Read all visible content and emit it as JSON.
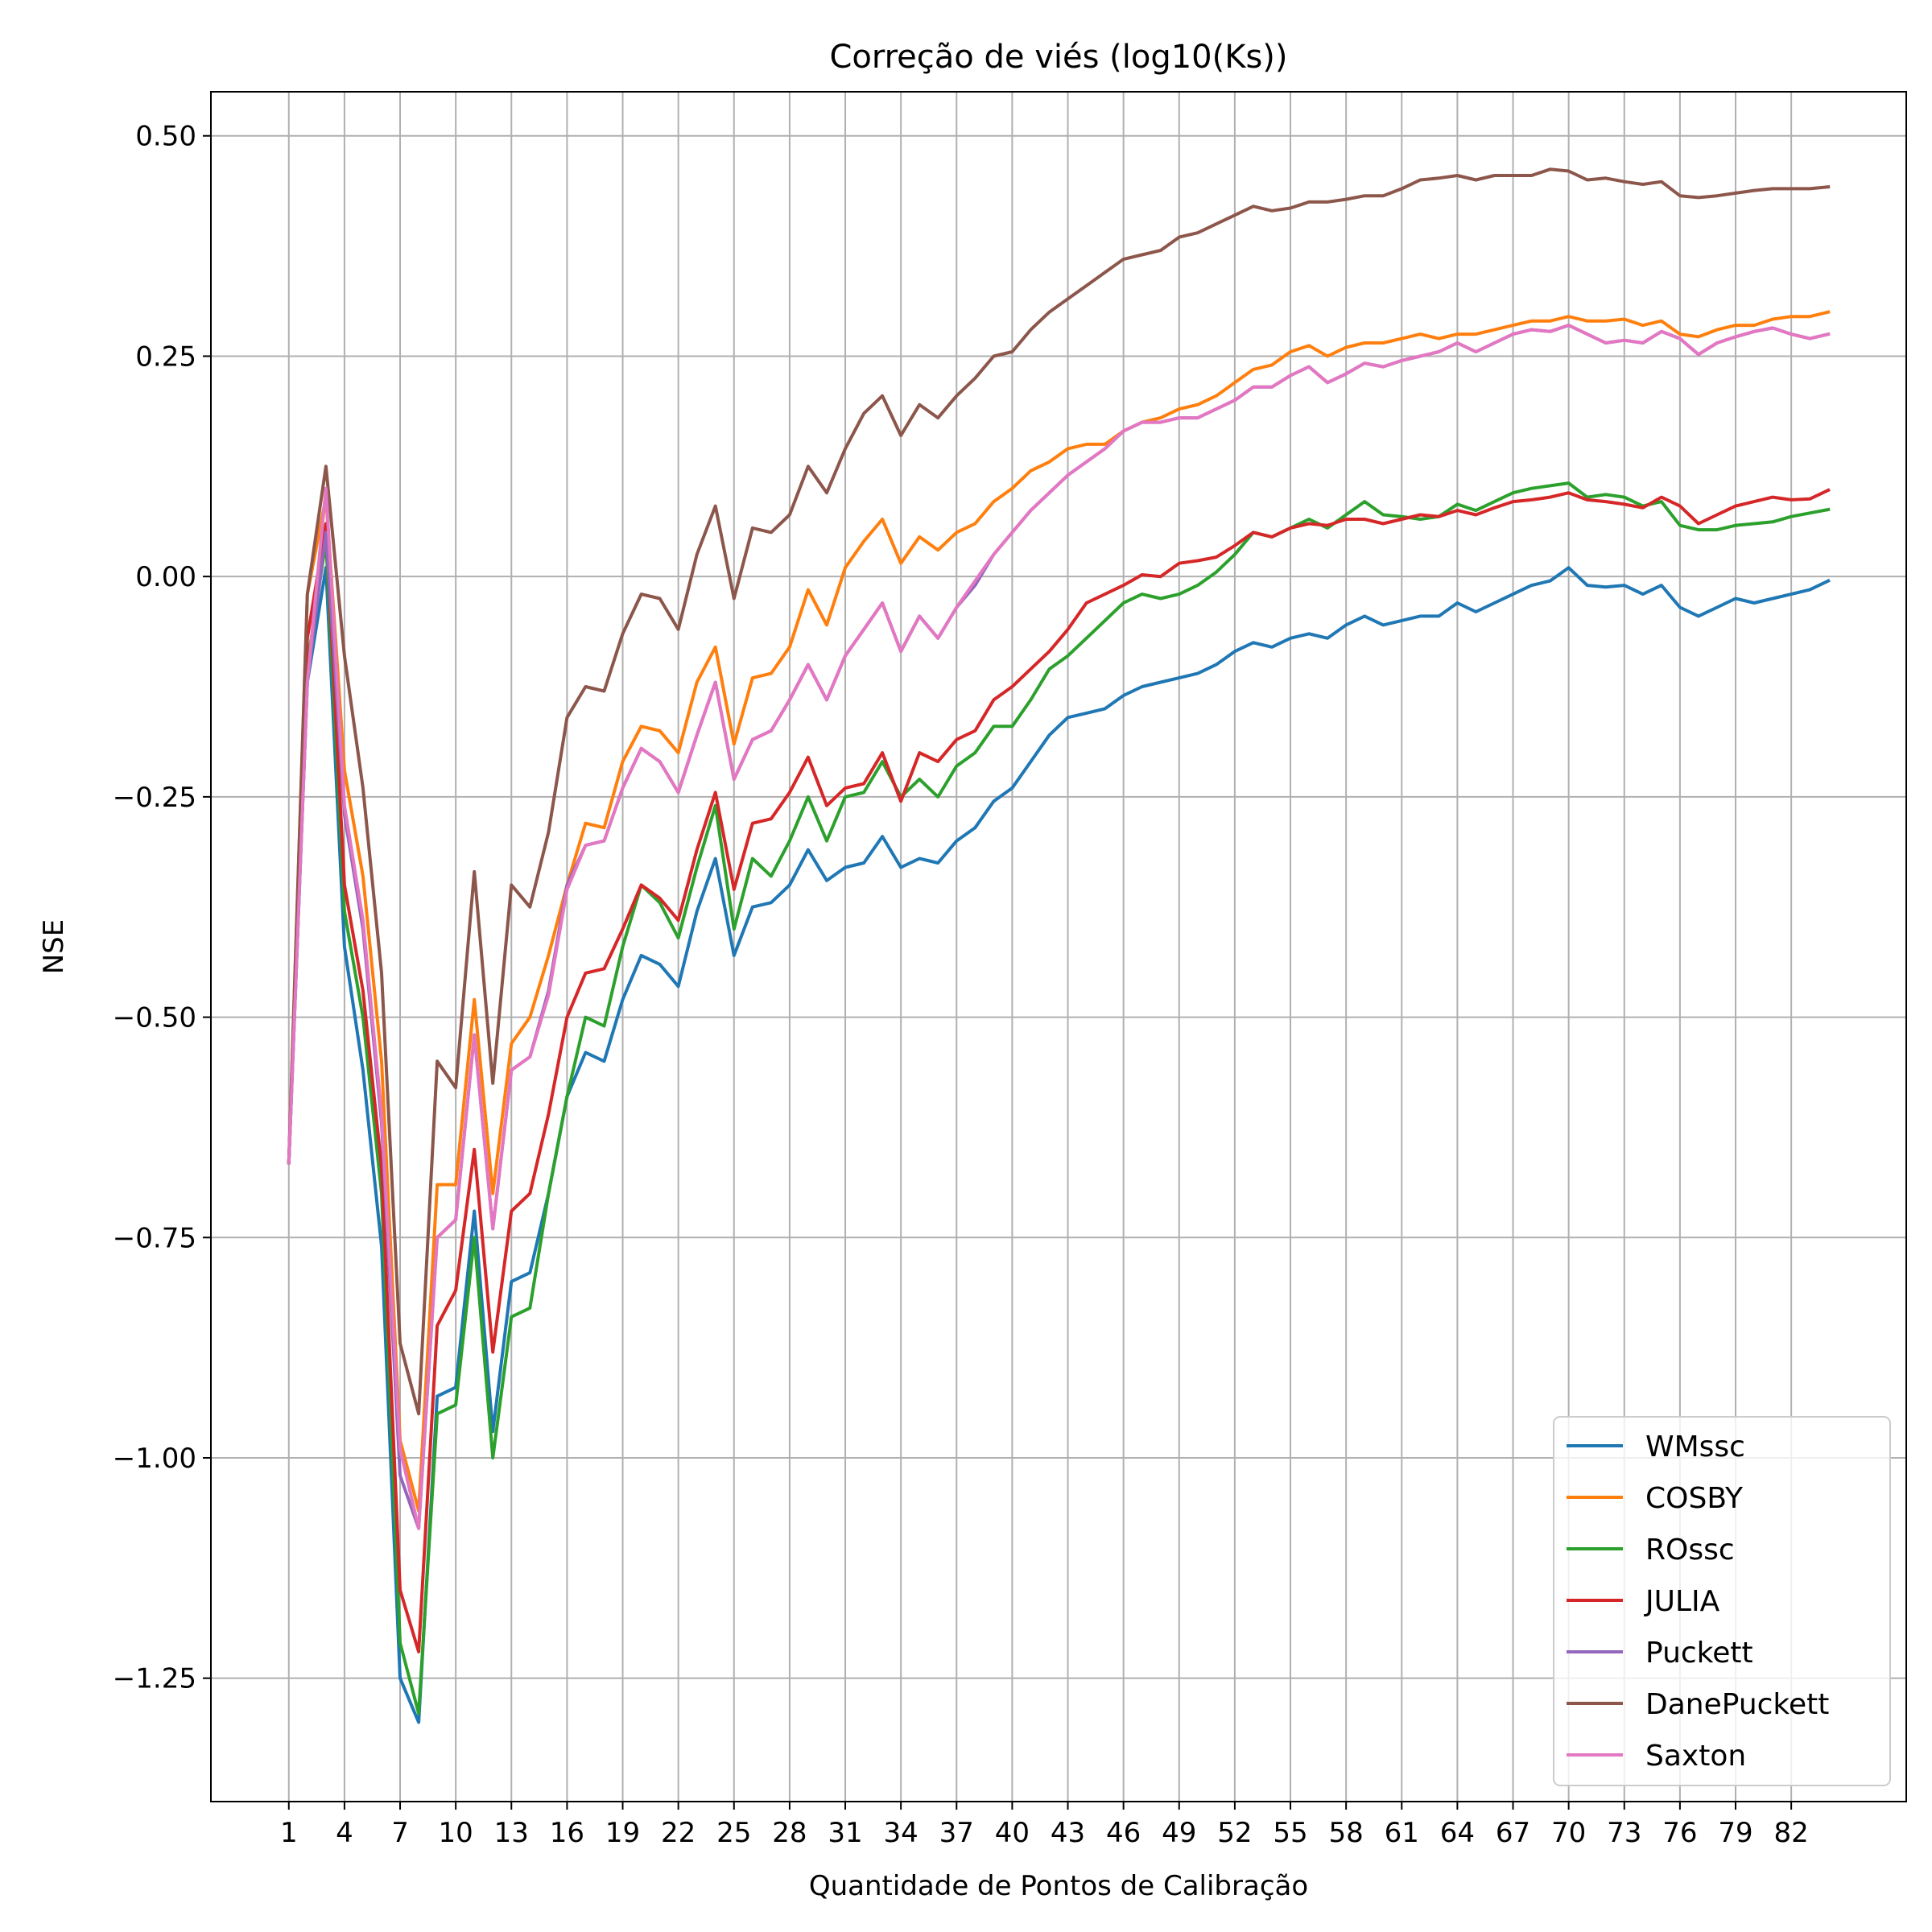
{
  "chart_data": {
    "type": "line",
    "title": "Correção de viés (log10(Ks))",
    "xlabel": "Quantidade de Pontos de Calibração",
    "ylabel": "NSE",
    "xlim": [
      -3.2,
      88.2
    ],
    "ylim": [
      -1.39,
      0.55
    ],
    "xticks": [
      1,
      4,
      7,
      10,
      13,
      16,
      19,
      22,
      25,
      28,
      31,
      34,
      37,
      40,
      43,
      46,
      49,
      52,
      55,
      58,
      61,
      64,
      67,
      70,
      73,
      76,
      79,
      82
    ],
    "yticks": [
      0.5,
      0.25,
      0.0,
      -0.25,
      -0.5,
      -0.75,
      -1.0,
      -1.25
    ],
    "ytick_labels": [
      "0.50",
      "0.25",
      "0.00",
      "−0.25",
      "−0.50",
      "−0.75",
      "−1.00",
      "−1.25"
    ],
    "grid": true,
    "legend_position": "lower-right",
    "x_start": 1,
    "series": [
      {
        "name": "WMssc",
        "color": "#1f77b4",
        "values": [
          -0.665,
          -0.12,
          0.01,
          -0.42,
          -0.56,
          -0.76,
          -1.25,
          -1.3,
          -0.93,
          -0.92,
          -0.72,
          -0.97,
          -0.8,
          -0.79,
          -0.7,
          -0.59,
          -0.54,
          -0.55,
          -0.48,
          -0.43,
          -0.44,
          -0.465,
          -0.38,
          -0.32,
          -0.43,
          -0.375,
          -0.37,
          -0.35,
          -0.31,
          -0.345,
          -0.33,
          -0.325,
          -0.295,
          -0.33,
          -0.32,
          -0.325,
          -0.3,
          -0.285,
          -0.255,
          -0.24,
          -0.21,
          -0.18,
          -0.16,
          -0.155,
          -0.15,
          -0.135,
          -0.125,
          -0.12,
          -0.115,
          -0.11,
          -0.1,
          -0.085,
          -0.075,
          -0.08,
          -0.07,
          -0.065,
          -0.07,
          -0.055,
          -0.045,
          -0.055,
          -0.05,
          -0.045,
          -0.045,
          -0.03,
          -0.04,
          -0.03,
          -0.02,
          -0.01,
          -0.005,
          0.01,
          -0.01,
          -0.012,
          -0.01,
          -0.02,
          -0.01,
          -0.035,
          -0.045,
          -0.035,
          -0.025,
          -0.03,
          -0.025,
          -0.02,
          -0.015,
          -0.005
        ]
      },
      {
        "name": "COSBY",
        "color": "#ff7f0e",
        "values": [
          -0.665,
          -0.02,
          0.09,
          -0.22,
          -0.34,
          -0.55,
          -0.98,
          -1.06,
          -0.69,
          -0.69,
          -0.48,
          -0.7,
          -0.53,
          -0.5,
          -0.43,
          -0.35,
          -0.28,
          -0.285,
          -0.21,
          -0.17,
          -0.175,
          -0.2,
          -0.12,
          -0.08,
          -0.19,
          -0.115,
          -0.11,
          -0.08,
          -0.015,
          -0.055,
          0.01,
          0.04,
          0.065,
          0.015,
          0.045,
          0.03,
          0.05,
          0.06,
          0.085,
          0.1,
          0.12,
          0.13,
          0.145,
          0.15,
          0.15,
          0.165,
          0.175,
          0.18,
          0.19,
          0.195,
          0.205,
          0.22,
          0.235,
          0.24,
          0.255,
          0.262,
          0.25,
          0.26,
          0.265,
          0.265,
          0.27,
          0.275,
          0.27,
          0.275,
          0.275,
          0.28,
          0.285,
          0.29,
          0.29,
          0.295,
          0.29,
          0.29,
          0.292,
          0.285,
          0.29,
          0.275,
          0.272,
          0.28,
          0.285,
          0.285,
          0.292,
          0.295,
          0.295,
          0.3
        ]
      },
      {
        "name": "ROssc",
        "color": "#2ca02c",
        "values": [
          -0.665,
          -0.1,
          0.04,
          -0.38,
          -0.5,
          -0.7,
          -1.21,
          -1.29,
          -0.95,
          -0.94,
          -0.75,
          -1.0,
          -0.84,
          -0.83,
          -0.7,
          -0.59,
          -0.5,
          -0.51,
          -0.42,
          -0.35,
          -0.37,
          -0.41,
          -0.33,
          -0.26,
          -0.4,
          -0.32,
          -0.34,
          -0.3,
          -0.25,
          -0.3,
          -0.25,
          -0.245,
          -0.21,
          -0.25,
          -0.23,
          -0.25,
          -0.215,
          -0.2,
          -0.17,
          -0.17,
          -0.14,
          -0.105,
          -0.09,
          -0.07,
          -0.05,
          -0.03,
          -0.02,
          -0.025,
          -0.02,
          -0.01,
          0.005,
          0.025,
          0.05,
          0.045,
          0.055,
          0.065,
          0.055,
          0.07,
          0.085,
          0.07,
          0.068,
          0.065,
          0.068,
          0.082,
          0.075,
          0.085,
          0.095,
          0.1,
          0.103,
          0.106,
          0.09,
          0.093,
          0.09,
          0.08,
          0.085,
          0.058,
          0.053,
          0.053,
          0.058,
          0.06,
          0.062,
          0.068,
          0.072,
          0.076
        ]
      },
      {
        "name": "JULIA",
        "color": "#d62728",
        "values": [
          -0.665,
          -0.07,
          0.06,
          -0.35,
          -0.47,
          -0.67,
          -1.15,
          -1.22,
          -0.85,
          -0.81,
          -0.65,
          -0.88,
          -0.72,
          -0.7,
          -0.61,
          -0.5,
          -0.45,
          -0.445,
          -0.4,
          -0.35,
          -0.365,
          -0.39,
          -0.31,
          -0.245,
          -0.355,
          -0.28,
          -0.275,
          -0.245,
          -0.205,
          -0.26,
          -0.24,
          -0.235,
          -0.2,
          -0.255,
          -0.2,
          -0.21,
          -0.185,
          -0.175,
          -0.14,
          -0.125,
          -0.105,
          -0.085,
          -0.06,
          -0.03,
          -0.02,
          -0.01,
          0.002,
          0.0,
          0.015,
          0.018,
          0.022,
          0.035,
          0.05,
          0.045,
          0.055,
          0.06,
          0.058,
          0.065,
          0.065,
          0.06,
          0.065,
          0.07,
          0.068,
          0.075,
          0.07,
          0.078,
          0.085,
          0.087,
          0.09,
          0.095,
          0.087,
          0.085,
          0.082,
          0.078,
          0.09,
          0.08,
          0.06,
          0.07,
          0.08,
          0.085,
          0.09,
          0.087,
          0.088,
          0.098
        ]
      },
      {
        "name": "Puckett",
        "color": "#9467bd",
        "values": [
          -0.665,
          -0.12,
          0.05,
          -0.27,
          -0.4,
          -0.62,
          -1.02,
          -1.08,
          -0.75,
          -0.73,
          -0.52,
          -0.74,
          -0.56,
          -0.545,
          -0.47,
          -0.35,
          -0.305,
          -0.3,
          -0.24,
          -0.195,
          -0.21,
          -0.245,
          -0.18,
          -0.12,
          -0.23,
          -0.185,
          -0.175,
          -0.14,
          -0.1,
          -0.14,
          -0.09,
          -0.06,
          -0.03,
          -0.085,
          -0.045,
          -0.07,
          -0.035,
          -0.01,
          0.025,
          0.05,
          0.075,
          0.095,
          0.115,
          0.13,
          0.145,
          0.165,
          0.175,
          0.175,
          0.18,
          0.18,
          0.19,
          0.2,
          0.215,
          0.215,
          0.228,
          0.238,
          0.22,
          0.23,
          0.242,
          0.238,
          0.245,
          0.25,
          0.255,
          0.265,
          0.255,
          0.265,
          0.275,
          0.28,
          0.278,
          0.285,
          0.275,
          0.265,
          0.268,
          0.265,
          0.278,
          0.27,
          0.252,
          0.265,
          0.272,
          0.278,
          0.282,
          0.275,
          0.27,
          0.275
        ]
      },
      {
        "name": "DanePuckett",
        "color": "#8c564b",
        "values": [
          -0.665,
          -0.02,
          0.125,
          -0.09,
          -0.24,
          -0.45,
          -0.87,
          -0.95,
          -0.55,
          -0.58,
          -0.335,
          -0.575,
          -0.35,
          -0.375,
          -0.29,
          -0.16,
          -0.125,
          -0.13,
          -0.065,
          -0.02,
          -0.025,
          -0.06,
          0.025,
          0.08,
          -0.025,
          0.055,
          0.05,
          0.07,
          0.125,
          0.095,
          0.145,
          0.185,
          0.205,
          0.16,
          0.195,
          0.18,
          0.205,
          0.225,
          0.25,
          0.255,
          0.28,
          0.3,
          0.315,
          0.33,
          0.345,
          0.36,
          0.365,
          0.37,
          0.385,
          0.39,
          0.4,
          0.41,
          0.42,
          0.415,
          0.418,
          0.425,
          0.425,
          0.428,
          0.432,
          0.432,
          0.44,
          0.45,
          0.452,
          0.455,
          0.45,
          0.455,
          0.455,
          0.455,
          0.462,
          0.46,
          0.45,
          0.452,
          0.448,
          0.445,
          0.448,
          0.432,
          0.43,
          0.432,
          0.435,
          0.438,
          0.44,
          0.44,
          0.44,
          0.442
        ]
      },
      {
        "name": "Saxton",
        "color": "#e377c2",
        "values": [
          -0.665,
          -0.12,
          0.1,
          -0.26,
          -0.39,
          -0.61,
          -0.99,
          -1.08,
          -0.75,
          -0.73,
          -0.52,
          -0.74,
          -0.56,
          -0.545,
          -0.475,
          -0.355,
          -0.305,
          -0.3,
          -0.24,
          -0.195,
          -0.21,
          -0.245,
          -0.18,
          -0.12,
          -0.23,
          -0.185,
          -0.175,
          -0.14,
          -0.1,
          -0.14,
          -0.09,
          -0.06,
          -0.03,
          -0.085,
          -0.045,
          -0.07,
          -0.035,
          -0.005,
          0.025,
          0.05,
          0.075,
          0.095,
          0.115,
          0.13,
          0.145,
          0.165,
          0.175,
          0.175,
          0.18,
          0.18,
          0.19,
          0.2,
          0.215,
          0.215,
          0.228,
          0.238,
          0.22,
          0.23,
          0.242,
          0.238,
          0.245,
          0.25,
          0.255,
          0.265,
          0.255,
          0.265,
          0.275,
          0.28,
          0.278,
          0.285,
          0.275,
          0.265,
          0.268,
          0.265,
          0.278,
          0.27,
          0.252,
          0.265,
          0.272,
          0.278,
          0.282,
          0.275,
          0.27,
          0.275
        ]
      }
    ]
  }
}
